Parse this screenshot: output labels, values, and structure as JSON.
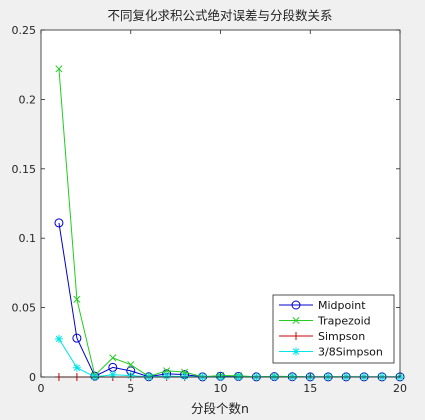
{
  "chart_data": {
    "type": "line",
    "title": "不同复化求积公式绝对误差与分段数关系",
    "xlabel": "分段个数n",
    "ylabel": "",
    "xlim": [
      0,
      20
    ],
    "ylim": [
      0,
      0.25
    ],
    "x_ticks": [
      0,
      5,
      10,
      15,
      20
    ],
    "x_tick_labels": [
      "0",
      "5",
      "10",
      "15",
      "20"
    ],
    "y_ticks": [
      0,
      0.05,
      0.1,
      0.15,
      0.2,
      0.25
    ],
    "y_tick_labels": [
      "0",
      "0.05",
      "0.1",
      "0.15",
      "0.2",
      "0.25"
    ],
    "grid": false,
    "legend_position": "bottom-right",
    "x": [
      1,
      2,
      3,
      4,
      5,
      6,
      7,
      8,
      9,
      10,
      11,
      12,
      13,
      14,
      15,
      16,
      17,
      18,
      19,
      20
    ],
    "series": [
      {
        "name": "Midpoint",
        "color": "#0000cc",
        "marker": "circle",
        "values": [
          0.111,
          0.028,
          0.0006,
          0.0069,
          0.0044,
          0.0002,
          0.0023,
          0.0017,
          0.0001,
          0.0005,
          0.0004,
          0.0001,
          0.0003,
          0.0002,
          0.0001,
          0.0001,
          0.0001,
          0.0001,
          0.0001,
          0.0001
        ]
      },
      {
        "name": "Trapezoid",
        "color": "#22cc22",
        "marker": "x",
        "values": [
          0.222,
          0.056,
          0.0012,
          0.0138,
          0.0089,
          0.0004,
          0.0045,
          0.0035,
          0.0002,
          0.0011,
          0.0009,
          0.0001,
          0.0005,
          0.0004,
          0.0001,
          0.0002,
          0.0002,
          0.0001,
          0.0001,
          0.0001
        ]
      },
      {
        "name": "Simpson",
        "color": "#cc0000",
        "marker": "plus",
        "values": [
          0,
          0,
          0,
          0,
          0,
          0,
          0,
          0,
          0,
          0,
          0,
          0,
          0,
          0,
          0,
          0,
          0,
          0,
          0,
          0
        ]
      },
      {
        "name": "3/8Simpson",
        "color": "#00e5e5",
        "marker": "asterisk",
        "values": [
          0.0275,
          0.0067,
          0.0001,
          0.0016,
          0.0011,
          0.0001,
          0.0006,
          0.0004,
          0.0001,
          0.0001,
          0.0001,
          0.0001,
          0.0001,
          0.0001,
          0.0001,
          0.0001,
          0.0001,
          0.0001,
          0.0001,
          0.0001
        ]
      }
    ]
  }
}
